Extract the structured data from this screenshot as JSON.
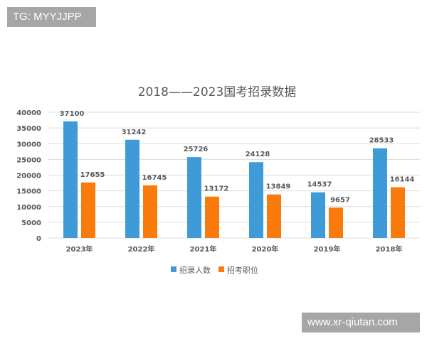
{
  "watermarks": {
    "top_left": "TG: MYYJJPP",
    "bottom_right": "www.xr-qiutan.com"
  },
  "chart_data": {
    "type": "bar",
    "title": "2018——2023国考招录数据",
    "categories": [
      "2023年",
      "2022年",
      "2021年",
      "2020年",
      "2019年",
      "2018年"
    ],
    "series": [
      {
        "name": "招录人数",
        "color": "#3f9bd8",
        "values": [
          37100,
          31242,
          25726,
          24128,
          14537,
          28533
        ]
      },
      {
        "name": "招考职位",
        "color": "#fb7a0c",
        "values": [
          17655,
          16745,
          13172,
          13849,
          9657,
          16144
        ]
      }
    ],
    "ylim": [
      0,
      40000
    ],
    "yticks": [
      0,
      5000,
      10000,
      15000,
      20000,
      25000,
      30000,
      35000,
      40000
    ],
    "grid": true,
    "legend": "bottom",
    "xlabel": "",
    "ylabel": ""
  }
}
